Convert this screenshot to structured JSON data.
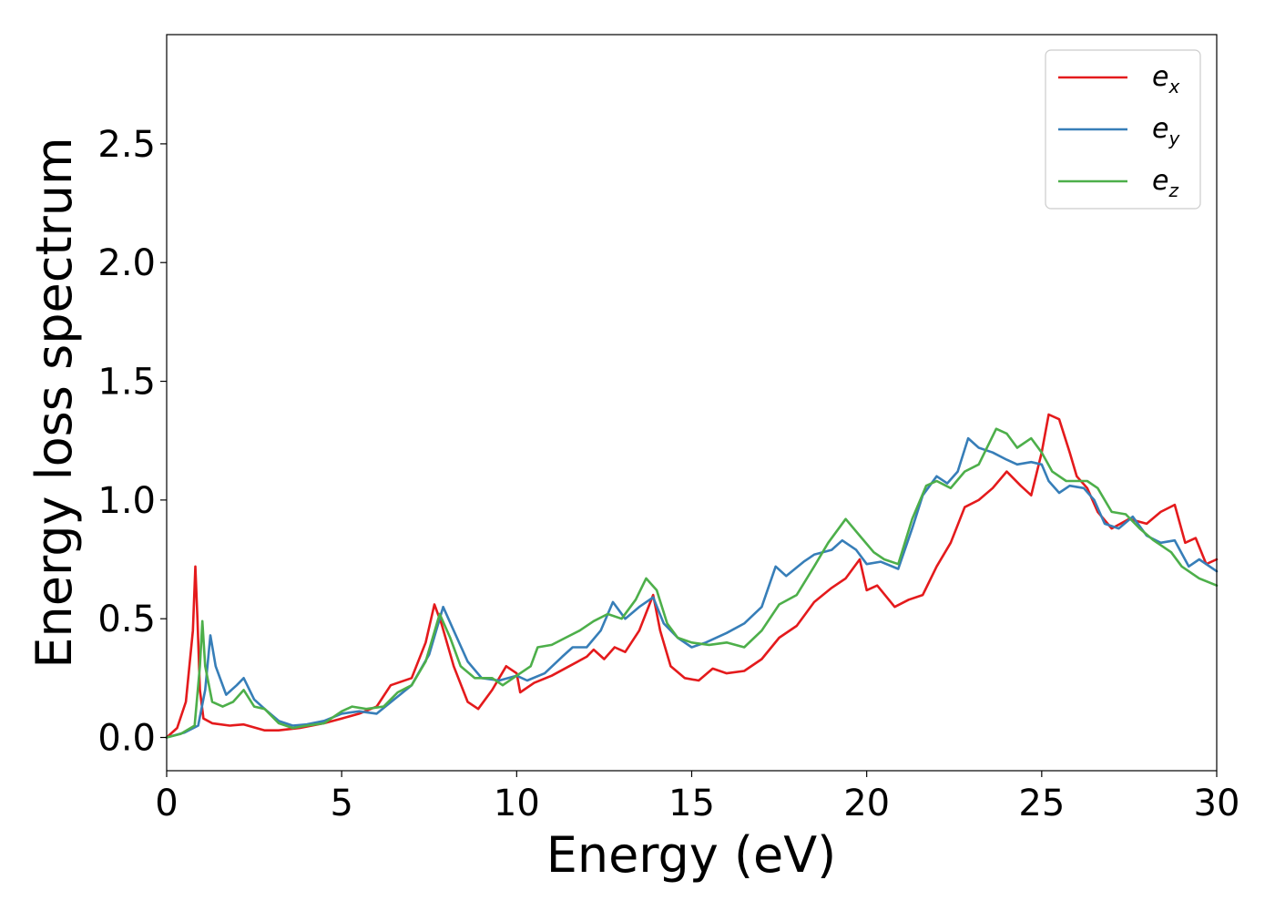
{
  "chart_data": {
    "type": "line",
    "xlabel": "Energy (eV)",
    "ylabel": "Energy loss spectrum",
    "xlim": [
      0,
      30
    ],
    "ylim": [
      -0.14,
      2.96
    ],
    "xticks": [
      0,
      5,
      10,
      15,
      20,
      25,
      30
    ],
    "yticks": [
      0.0,
      0.5,
      1.0,
      1.5,
      2.0,
      2.5
    ],
    "xtick_labels": [
      "0",
      "5",
      "10",
      "15",
      "20",
      "25",
      "30"
    ],
    "ytick_labels": [
      "0.0",
      "0.5",
      "1.0",
      "1.5",
      "2.0",
      "2.5"
    ],
    "grid": false,
    "legend_position": "top-right",
    "series": [
      {
        "name": "e_x",
        "legend_main": "e",
        "legend_sub": "x",
        "color": "#e41a1c",
        "points": [
          [
            0,
            0.0
          ],
          [
            0.3,
            0.04
          ],
          [
            0.55,
            0.15
          ],
          [
            0.75,
            0.45
          ],
          [
            0.82,
            0.72
          ],
          [
            0.88,
            0.5
          ],
          [
            0.95,
            0.2
          ],
          [
            1.05,
            0.08
          ],
          [
            1.3,
            0.06
          ],
          [
            1.8,
            0.05
          ],
          [
            2.2,
            0.055
          ],
          [
            2.8,
            0.03
          ],
          [
            3.2,
            0.03
          ],
          [
            3.8,
            0.04
          ],
          [
            4.5,
            0.06
          ],
          [
            5.0,
            0.08
          ],
          [
            5.5,
            0.1
          ],
          [
            6.0,
            0.13
          ],
          [
            6.4,
            0.22
          ],
          [
            7.0,
            0.25
          ],
          [
            7.4,
            0.4
          ],
          [
            7.65,
            0.56
          ],
          [
            7.85,
            0.48
          ],
          [
            8.2,
            0.3
          ],
          [
            8.6,
            0.15
          ],
          [
            8.9,
            0.12
          ],
          [
            9.3,
            0.2
          ],
          [
            9.7,
            0.3
          ],
          [
            10.0,
            0.27
          ],
          [
            10.1,
            0.19
          ],
          [
            10.5,
            0.23
          ],
          [
            11.0,
            0.26
          ],
          [
            11.5,
            0.3
          ],
          [
            12.0,
            0.34
          ],
          [
            12.2,
            0.37
          ],
          [
            12.5,
            0.33
          ],
          [
            12.8,
            0.38
          ],
          [
            13.1,
            0.36
          ],
          [
            13.5,
            0.45
          ],
          [
            13.9,
            0.6
          ],
          [
            14.1,
            0.45
          ],
          [
            14.4,
            0.3
          ],
          [
            14.8,
            0.25
          ],
          [
            15.2,
            0.24
          ],
          [
            15.6,
            0.29
          ],
          [
            16.0,
            0.27
          ],
          [
            16.5,
            0.28
          ],
          [
            17.0,
            0.33
          ],
          [
            17.5,
            0.42
          ],
          [
            18.0,
            0.47
          ],
          [
            18.5,
            0.57
          ],
          [
            19.0,
            0.63
          ],
          [
            19.4,
            0.67
          ],
          [
            19.8,
            0.75
          ],
          [
            20.0,
            0.62
          ],
          [
            20.3,
            0.64
          ],
          [
            20.8,
            0.55
          ],
          [
            21.2,
            0.58
          ],
          [
            21.6,
            0.6
          ],
          [
            22.0,
            0.72
          ],
          [
            22.4,
            0.82
          ],
          [
            22.8,
            0.97
          ],
          [
            23.2,
            1.0
          ],
          [
            23.6,
            1.05
          ],
          [
            24.0,
            1.12
          ],
          [
            24.4,
            1.06
          ],
          [
            24.7,
            1.02
          ],
          [
            25.0,
            1.2
          ],
          [
            25.2,
            1.36
          ],
          [
            25.5,
            1.34
          ],
          [
            25.8,
            1.2
          ],
          [
            26.0,
            1.1
          ],
          [
            26.3,
            1.05
          ],
          [
            26.6,
            0.95
          ],
          [
            27.0,
            0.88
          ],
          [
            27.5,
            0.92
          ],
          [
            28.0,
            0.9
          ],
          [
            28.4,
            0.95
          ],
          [
            28.8,
            0.98
          ],
          [
            29.1,
            0.82
          ],
          [
            29.4,
            0.84
          ],
          [
            29.7,
            0.73
          ],
          [
            30.0,
            0.75
          ]
        ]
      },
      {
        "name": "e_y",
        "legend_main": "e",
        "legend_sub": "y",
        "color": "#377eb8",
        "points": [
          [
            0,
            0.0
          ],
          [
            0.5,
            0.02
          ],
          [
            0.9,
            0.05
          ],
          [
            1.1,
            0.2
          ],
          [
            1.25,
            0.43
          ],
          [
            1.4,
            0.3
          ],
          [
            1.7,
            0.18
          ],
          [
            2.0,
            0.22
          ],
          [
            2.2,
            0.25
          ],
          [
            2.5,
            0.16
          ],
          [
            2.8,
            0.12
          ],
          [
            3.2,
            0.07
          ],
          [
            3.6,
            0.05
          ],
          [
            4.0,
            0.055
          ],
          [
            4.5,
            0.07
          ],
          [
            5.0,
            0.1
          ],
          [
            5.5,
            0.11
          ],
          [
            6.0,
            0.1
          ],
          [
            6.5,
            0.16
          ],
          [
            7.0,
            0.22
          ],
          [
            7.5,
            0.35
          ],
          [
            7.9,
            0.55
          ],
          [
            8.2,
            0.45
          ],
          [
            8.6,
            0.32
          ],
          [
            9.0,
            0.25
          ],
          [
            9.5,
            0.24
          ],
          [
            10.0,
            0.26
          ],
          [
            10.3,
            0.24
          ],
          [
            10.8,
            0.27
          ],
          [
            11.3,
            0.34
          ],
          [
            11.6,
            0.38
          ],
          [
            12.0,
            0.38
          ],
          [
            12.4,
            0.45
          ],
          [
            12.75,
            0.57
          ],
          [
            13.1,
            0.5
          ],
          [
            13.5,
            0.55
          ],
          [
            13.9,
            0.59
          ],
          [
            14.2,
            0.48
          ],
          [
            14.6,
            0.42
          ],
          [
            15.0,
            0.38
          ],
          [
            15.4,
            0.4
          ],
          [
            16.0,
            0.44
          ],
          [
            16.5,
            0.48
          ],
          [
            17.0,
            0.55
          ],
          [
            17.4,
            0.72
          ],
          [
            17.7,
            0.68
          ],
          [
            18.2,
            0.74
          ],
          [
            18.5,
            0.77
          ],
          [
            19.0,
            0.79
          ],
          [
            19.3,
            0.83
          ],
          [
            19.7,
            0.79
          ],
          [
            20.0,
            0.73
          ],
          [
            20.4,
            0.74
          ],
          [
            20.9,
            0.71
          ],
          [
            21.3,
            0.88
          ],
          [
            21.6,
            1.02
          ],
          [
            22.0,
            1.1
          ],
          [
            22.3,
            1.07
          ],
          [
            22.6,
            1.12
          ],
          [
            22.9,
            1.26
          ],
          [
            23.2,
            1.22
          ],
          [
            23.6,
            1.2
          ],
          [
            24.0,
            1.17
          ],
          [
            24.3,
            1.15
          ],
          [
            24.7,
            1.16
          ],
          [
            25.0,
            1.15
          ],
          [
            25.2,
            1.08
          ],
          [
            25.5,
            1.03
          ],
          [
            25.8,
            1.06
          ],
          [
            26.2,
            1.05
          ],
          [
            26.5,
            1.0
          ],
          [
            26.8,
            0.9
          ],
          [
            27.2,
            0.88
          ],
          [
            27.6,
            0.93
          ],
          [
            28.0,
            0.85
          ],
          [
            28.4,
            0.82
          ],
          [
            28.8,
            0.83
          ],
          [
            29.2,
            0.72
          ],
          [
            29.5,
            0.75
          ],
          [
            30.0,
            0.7
          ]
        ]
      },
      {
        "name": "e_z",
        "legend_main": "e",
        "legend_sub": "z",
        "color": "#4daf4a",
        "points": [
          [
            0,
            0.0
          ],
          [
            0.4,
            0.015
          ],
          [
            0.8,
            0.05
          ],
          [
            0.95,
            0.3
          ],
          [
            1.02,
            0.49
          ],
          [
            1.1,
            0.3
          ],
          [
            1.3,
            0.15
          ],
          [
            1.6,
            0.13
          ],
          [
            1.9,
            0.15
          ],
          [
            2.2,
            0.2
          ],
          [
            2.5,
            0.13
          ],
          [
            2.8,
            0.12
          ],
          [
            3.2,
            0.06
          ],
          [
            3.6,
            0.04
          ],
          [
            4.0,
            0.05
          ],
          [
            4.5,
            0.06
          ],
          [
            5.0,
            0.11
          ],
          [
            5.3,
            0.13
          ],
          [
            5.7,
            0.12
          ],
          [
            6.2,
            0.13
          ],
          [
            6.6,
            0.19
          ],
          [
            7.0,
            0.22
          ],
          [
            7.4,
            0.32
          ],
          [
            7.8,
            0.52
          ],
          [
            8.1,
            0.42
          ],
          [
            8.4,
            0.3
          ],
          [
            8.8,
            0.25
          ],
          [
            9.3,
            0.25
          ],
          [
            9.6,
            0.22
          ],
          [
            10.0,
            0.26
          ],
          [
            10.4,
            0.3
          ],
          [
            10.6,
            0.38
          ],
          [
            11.0,
            0.39
          ],
          [
            11.4,
            0.42
          ],
          [
            11.8,
            0.45
          ],
          [
            12.2,
            0.49
          ],
          [
            12.6,
            0.52
          ],
          [
            13.0,
            0.5
          ],
          [
            13.4,
            0.58
          ],
          [
            13.7,
            0.67
          ],
          [
            14.0,
            0.62
          ],
          [
            14.3,
            0.48
          ],
          [
            14.6,
            0.42
          ],
          [
            15.0,
            0.4
          ],
          [
            15.5,
            0.39
          ],
          [
            16.0,
            0.4
          ],
          [
            16.5,
            0.38
          ],
          [
            17.0,
            0.45
          ],
          [
            17.5,
            0.56
          ],
          [
            18.0,
            0.6
          ],
          [
            18.5,
            0.72
          ],
          [
            18.9,
            0.82
          ],
          [
            19.4,
            0.92
          ],
          [
            19.8,
            0.85
          ],
          [
            20.2,
            0.78
          ],
          [
            20.5,
            0.75
          ],
          [
            20.9,
            0.73
          ],
          [
            21.3,
            0.92
          ],
          [
            21.7,
            1.06
          ],
          [
            22.0,
            1.08
          ],
          [
            22.4,
            1.05
          ],
          [
            22.8,
            1.12
          ],
          [
            23.2,
            1.15
          ],
          [
            23.7,
            1.3
          ],
          [
            24.0,
            1.28
          ],
          [
            24.3,
            1.22
          ],
          [
            24.7,
            1.26
          ],
          [
            25.0,
            1.2
          ],
          [
            25.3,
            1.12
          ],
          [
            25.7,
            1.08
          ],
          [
            26.3,
            1.08
          ],
          [
            26.6,
            1.05
          ],
          [
            27.0,
            0.95
          ],
          [
            27.4,
            0.94
          ],
          [
            27.8,
            0.88
          ],
          [
            28.2,
            0.83
          ],
          [
            28.7,
            0.78
          ],
          [
            29.0,
            0.72
          ],
          [
            29.5,
            0.67
          ],
          [
            30.0,
            0.64
          ]
        ]
      }
    ]
  }
}
